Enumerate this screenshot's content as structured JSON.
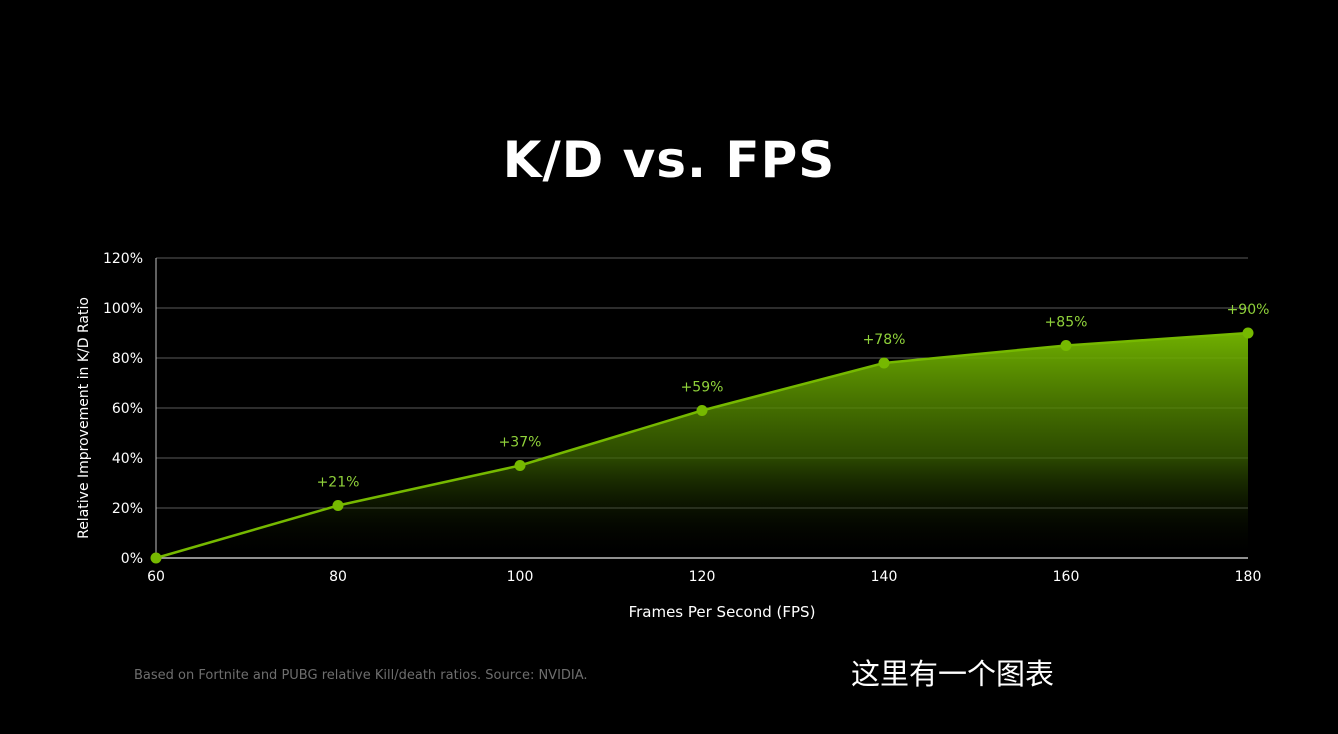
{
  "slide": {
    "footnote": "Based on Fortnite and PUBG relative Kill/death ratios. Source: NVIDIA.",
    "overlay_caption": "这里有一个图表"
  },
  "colors": {
    "background": "#000000",
    "accent_green": "#76b900",
    "label_green": "#8fd13a",
    "gridline": "#5a5a5a",
    "text": "#ffffff"
  },
  "chart_data": {
    "type": "area",
    "title": "K/D vs. FPS",
    "xlabel": "Frames Per Second (FPS)",
    "ylabel": "Relative Improvement in K/D Ratio",
    "x": [
      60,
      80,
      100,
      120,
      140,
      160,
      180
    ],
    "series": [
      {
        "values": [
          0,
          21,
          37,
          59,
          78,
          85,
          90
        ],
        "data_labels": [
          "",
          "+21%",
          "+37%",
          "+59%",
          "+78%",
          "+85%",
          "+90%"
        ]
      }
    ],
    "xlim": [
      60,
      180
    ],
    "ylim": [
      0,
      120
    ],
    "x_ticks": [
      "60",
      "80",
      "100",
      "120",
      "140",
      "160",
      "180"
    ],
    "y_ticks": [
      "0%",
      "20%",
      "40%",
      "60%",
      "80%",
      "100%",
      "120%"
    ],
    "y_tick_values": [
      0,
      20,
      40,
      60,
      80,
      100,
      120
    ],
    "grid": true,
    "legend": "none"
  }
}
